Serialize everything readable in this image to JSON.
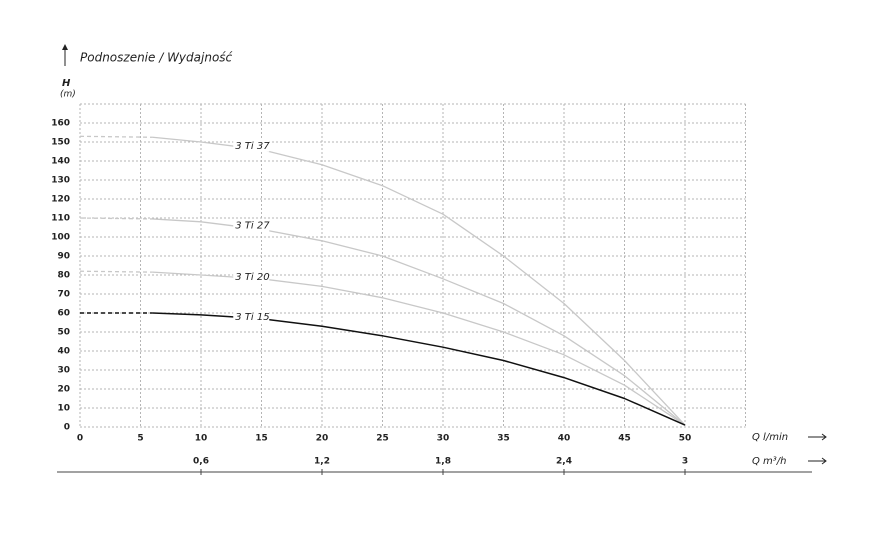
{
  "chart_data": {
    "type": "line",
    "title": "Podnoszenie / Wydajność",
    "y_label": "H",
    "y_unit": "(m)",
    "x_label": "Q l/min",
    "x2_label": "Q m³/h",
    "xlim": [
      0,
      55
    ],
    "xticks": [
      0,
      5,
      10,
      15,
      20,
      25,
      30,
      35,
      40,
      45,
      50
    ],
    "ylim": [
      0,
      170
    ],
    "yticks": [
      0,
      10,
      20,
      30,
      40,
      50,
      60,
      70,
      80,
      90,
      100,
      110,
      120,
      130,
      140,
      150,
      160
    ],
    "x2lim": [
      0,
      3.3
    ],
    "x2ticks": [
      {
        "value": 0.6,
        "label": "0,6"
      },
      {
        "value": 1.2,
        "label": "1,2"
      },
      {
        "value": 1.8,
        "label": "1,8"
      },
      {
        "value": 2.4,
        "label": "2,4"
      },
      3
    ],
    "grid": true,
    "x": [
      0,
      6,
      10,
      15,
      20,
      25,
      30,
      35,
      40,
      45,
      50
    ],
    "series": [
      {
        "name": "3 Ti 37",
        "color": "#c8c8c8",
        "values": [
          153,
          152.5,
          150,
          146,
          138,
          127,
          112,
          90,
          65,
          35,
          1
        ]
      },
      {
        "name": "3 Ti 27",
        "color": "#c8c8c8",
        "values": [
          110,
          109.5,
          108,
          104,
          98,
          90,
          78,
          65,
          48,
          27,
          1
        ]
      },
      {
        "name": "3 Ti 20",
        "color": "#c8c8c8",
        "values": [
          82,
          81.5,
          80,
          78,
          74,
          68,
          60,
          50,
          38,
          22,
          1
        ]
      },
      {
        "name": "3 Ti 15",
        "color": "#111111",
        "values": [
          60,
          60,
          59,
          57,
          53,
          48,
          42,
          35,
          26,
          15,
          1
        ]
      }
    ]
  }
}
